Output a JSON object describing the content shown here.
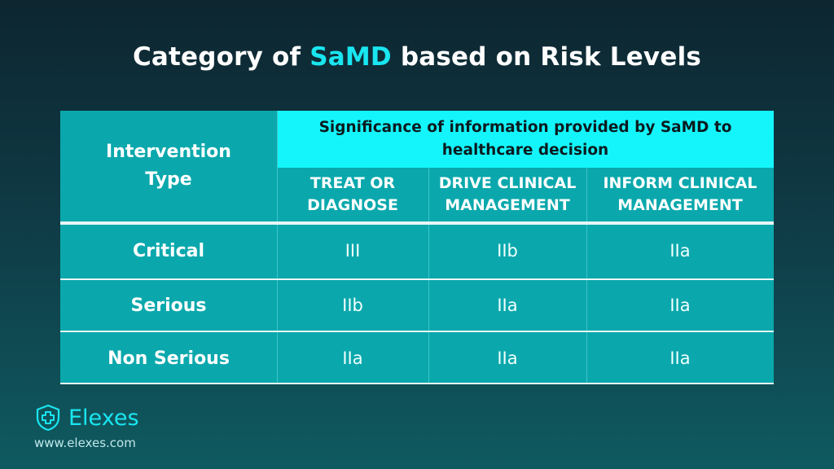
{
  "title": {
    "prefix": "Category of ",
    "highlight": "SaMD",
    "suffix": " based on Risk Levels"
  },
  "table": {
    "corner_header": [
      "Intervention",
      "Type"
    ],
    "band_header": [
      "Significance of information provided by SaMD to",
      "healthcare decision"
    ],
    "sub_headers": [
      [
        "TREAT OR",
        "DIAGNOSE"
      ],
      [
        "DRIVE CLINICAL",
        "MANAGEMENT"
      ],
      [
        "INFORM CLINICAL",
        "MANAGEMENT"
      ]
    ],
    "rows": [
      {
        "label": "Critical",
        "values": [
          "III",
          "IIb",
          "IIa"
        ]
      },
      {
        "label": "Serious",
        "values": [
          "IIb",
          "IIa",
          "IIa"
        ]
      },
      {
        "label": "Non Serious",
        "values": [
          "IIa",
          "IIa",
          "IIa"
        ]
      }
    ]
  },
  "brand": {
    "name": "Elexes",
    "url": "www.elexes.com",
    "accent": "#19e6f0",
    "icon": "medical-shield-cross-icon"
  },
  "colors": {
    "band": "#14f5fb",
    "table": "#0aa8ac"
  }
}
